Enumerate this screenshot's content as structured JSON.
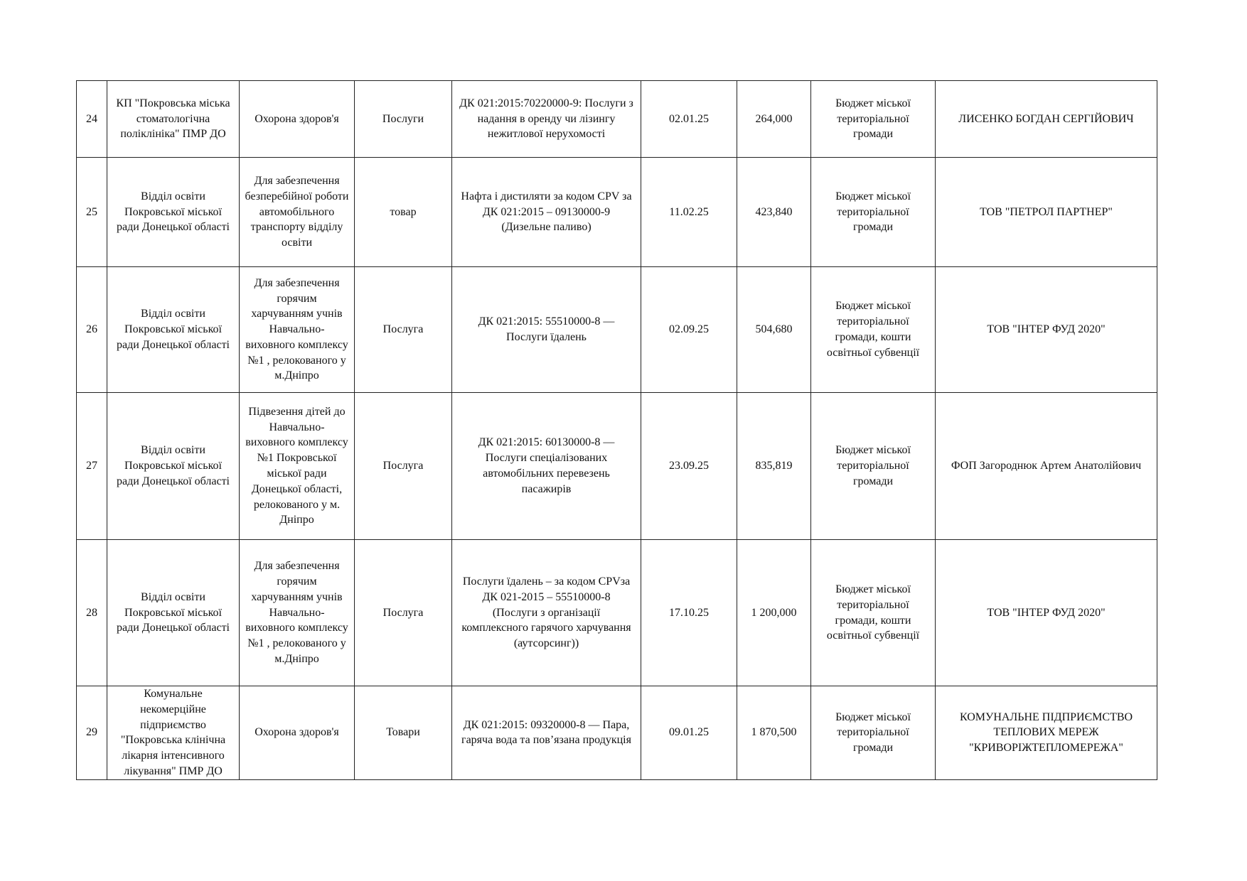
{
  "rows": [
    {
      "num": "24",
      "customer": "КП \"Покровська міська\nстоматологічна\nполіклініка\" ПМР ДО",
      "purpose": "Охорона здоров'я",
      "type": "Послуги",
      "subject": "ДК 021:2015:70220000-9: Послуги з\nнадання в оренду чи лізингу\nнежитлової нерухомості",
      "date": "02.01.25",
      "amount": "264,000",
      "source": "Бюджет міської\nтериторіальної\nгромади",
      "supplier": "ЛИСЕНКО БОГДАН СЕРГІЙОВИЧ"
    },
    {
      "num": "25",
      "customer": "Відділ освіти\nПокровської міської\nради Донецької області",
      "purpose": "Для забезпечення\nбезперебійної роботи\nавтомобільного\nтранспорту відділу\nосвіти",
      "type": "товар",
      "subject": "Нафта і дистиляти за кодом CPV за\nДК 021:2015 – 09130000-9\n(Дизельне паливо)",
      "date": "11.02.25",
      "amount": "423,840",
      "source": "Бюджет міської\nтериторіальної\nгромади",
      "supplier": "ТОВ  \"ПЕТРОЛ ПАРТНЕР\""
    },
    {
      "num": "26",
      "customer": "Відділ освіти\nПокровської міської\nради Донецької області",
      "purpose": "Для забезпечення\nгорячим\nхарчуванням учнів\nНавчально-\nвиховного комплексу\n№1 , релокованого у\nм.Дніпро",
      "type": "Послуга",
      "subject": "ДК 021:2015: 55510000-8 —\nПослуги їдалень",
      "date": "02.09.25",
      "amount": "504,680",
      "source": "Бюджет міської\nтериторіальної\nгромади, кошти\nосвітньої субвенції",
      "supplier": "ТОВ \"ІНТЕР ФУД 2020\""
    },
    {
      "num": "27",
      "customer": "Відділ освіти\nПокровської міської\nради Донецької області",
      "purpose": "Підвезення дітей до\nНавчально-\nвиховного комплексу\n№1 Покровської\nміської ради\nДонецької області,\nрелокованого у м.\nДніпро",
      "type": "Послуга",
      "subject": "ДК 021:2015: 60130000-8 —\nПослуги спеціалізованих\nавтомобільних перевезень\nпасажирів",
      "date": "23.09.25",
      "amount": "835,819",
      "source": "Бюджет міської\nтериторіальної\nгромади",
      "supplier": "ФОП Загороднюк Артем Анатолійович"
    },
    {
      "num": "28",
      "customer": "Відділ освіти\nПокровської міської\nради Донецької області",
      "purpose": "Для забезпечення\nгорячим\nхарчуванням учнів\nНавчально-\nвиховного комплексу\n№1 , релокованого у\nм.Дніпро",
      "type": "Послуга",
      "subject": "Послуги їдалень – за кодом CPVза\nДК 021-2015 – 55510000-8\n(Послуги з організації\nкомплексного гарячого харчування\n(аутсорсинг))",
      "date": "17.10.25",
      "amount": "1 200,000",
      "source": "Бюджет міської\nтериторіальної\nгромади, кошти\nосвітньої субвенції",
      "supplier": "ТОВ \"ІНТЕР ФУД 2020\""
    },
    {
      "num": "29",
      "customer": "Комунальне\nнекомерційне\nпідприємство\n\"Покровська клінічна\nлікарня інтенсивного\nлікування\" ПМР ДО",
      "purpose": "Охорона здоров'я",
      "type": "Товари",
      "subject": "ДК 021:2015: 09320000-8 — Пара,\nгаряча вода та пов’язана продукція",
      "date": "09.01.25",
      "amount": "1 870,500",
      "source": "Бюджет міської\nтериторіальної\nгромади",
      "supplier": "КОМУНАЛЬНЕ ПІДПРИЄМСТВО\nТЕПЛОВИХ МЕРЕЖ\n\"КРИВОРІЖТЕПЛОМЕРЕЖА\""
    }
  ]
}
